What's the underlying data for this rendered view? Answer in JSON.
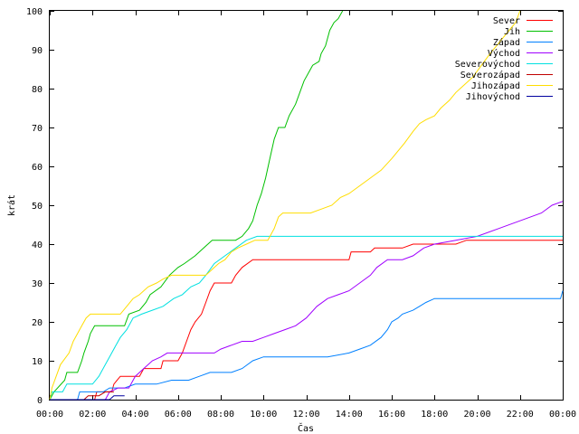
{
  "chart_data": {
    "type": "line",
    "title": "",
    "xlabel": "Čas",
    "ylabel": "krát",
    "xlim": [
      0,
      24
    ],
    "ylim": [
      0,
      100
    ],
    "grid": false,
    "legend_position": "top-right",
    "x_tick_labels": [
      "00:00",
      "02:00",
      "04:00",
      "06:00",
      "08:00",
      "10:00",
      "12:00",
      "14:00",
      "16:00",
      "18:00",
      "20:00",
      "22:00",
      "00:00"
    ],
    "y_tick_labels": [
      "0",
      "10",
      "20",
      "30",
      "40",
      "50",
      "60",
      "70",
      "80",
      "90",
      "100"
    ],
    "x_ticks": [
      0,
      2,
      4,
      6,
      8,
      10,
      12,
      14,
      16,
      18,
      20,
      22,
      24
    ],
    "y_ticks": [
      0,
      10,
      20,
      30,
      40,
      50,
      60,
      70,
      80,
      90,
      100
    ],
    "series": [
      {
        "name": "Sever",
        "color": "#ff0000",
        "points": [
          [
            0,
            0
          ],
          [
            2.1,
            0
          ],
          [
            2.2,
            2
          ],
          [
            2.9,
            2
          ],
          [
            3,
            4
          ],
          [
            3.3,
            6
          ],
          [
            4.2,
            6
          ],
          [
            4.4,
            8
          ],
          [
            5.2,
            8
          ],
          [
            5.3,
            10
          ],
          [
            6,
            10
          ],
          [
            6.2,
            12
          ],
          [
            6.4,
            15
          ],
          [
            6.6,
            18
          ],
          [
            6.8,
            20
          ],
          [
            7.1,
            22
          ],
          [
            7.3,
            25
          ],
          [
            7.5,
            28
          ],
          [
            7.7,
            30
          ],
          [
            8.5,
            30
          ],
          [
            8.7,
            32
          ],
          [
            9,
            34
          ],
          [
            9.5,
            36
          ],
          [
            10,
            36
          ],
          [
            12,
            36
          ],
          [
            14,
            36
          ],
          [
            14.1,
            38
          ],
          [
            15,
            38
          ],
          [
            15.2,
            39
          ],
          [
            16.5,
            39
          ],
          [
            17,
            40
          ],
          [
            17.5,
            40
          ],
          [
            18,
            40
          ],
          [
            19,
            40
          ],
          [
            19.5,
            41
          ],
          [
            24,
            41
          ]
        ]
      },
      {
        "name": "Jih",
        "color": "#00c000",
        "points": [
          [
            0,
            0
          ],
          [
            0.2,
            2
          ],
          [
            0.7,
            5
          ],
          [
            0.8,
            7
          ],
          [
            1.3,
            7
          ],
          [
            1.5,
            10
          ],
          [
            1.6,
            12
          ],
          [
            1.8,
            15
          ],
          [
            1.9,
            17
          ],
          [
            2.1,
            19
          ],
          [
            3.5,
            19
          ],
          [
            3.7,
            22
          ],
          [
            4.2,
            23
          ],
          [
            4.5,
            25
          ],
          [
            4.7,
            27
          ],
          [
            5.2,
            29
          ],
          [
            5.6,
            32
          ],
          [
            6,
            34
          ],
          [
            6.3,
            35
          ],
          [
            6.8,
            37
          ],
          [
            7.2,
            39
          ],
          [
            7.6,
            41
          ],
          [
            8,
            41
          ],
          [
            8.7,
            41
          ],
          [
            9,
            42
          ],
          [
            9.3,
            44
          ],
          [
            9.5,
            46
          ],
          [
            9.7,
            50
          ],
          [
            9.9,
            53
          ],
          [
            10.1,
            57
          ],
          [
            10.3,
            62
          ],
          [
            10.5,
            67
          ],
          [
            10.7,
            70
          ],
          [
            11,
            70
          ],
          [
            11.2,
            73
          ],
          [
            11.5,
            76
          ],
          [
            11.7,
            79
          ],
          [
            11.9,
            82
          ],
          [
            12.1,
            84
          ],
          [
            12.3,
            86
          ],
          [
            12.6,
            87
          ],
          [
            12.7,
            89
          ],
          [
            12.9,
            91
          ],
          [
            13.1,
            95
          ],
          [
            13.3,
            97
          ],
          [
            13.5,
            98
          ],
          [
            13.7,
            100
          ]
        ]
      },
      {
        "name": "Západ",
        "color": "#0080ff",
        "points": [
          [
            0,
            0
          ],
          [
            1.3,
            0
          ],
          [
            1.4,
            2
          ],
          [
            2.5,
            2
          ],
          [
            2.8,
            3
          ],
          [
            3.5,
            3
          ],
          [
            4,
            4
          ],
          [
            5,
            4
          ],
          [
            5.7,
            5
          ],
          [
            6.5,
            5
          ],
          [
            7,
            6
          ],
          [
            7.5,
            7
          ],
          [
            8.5,
            7
          ],
          [
            9,
            8
          ],
          [
            9.5,
            10
          ],
          [
            10,
            11
          ],
          [
            13,
            11
          ],
          [
            14,
            12
          ],
          [
            14.5,
            13
          ],
          [
            15,
            14
          ],
          [
            15.5,
            16
          ],
          [
            15.8,
            18
          ],
          [
            16,
            20
          ],
          [
            16.3,
            21
          ],
          [
            16.5,
            22
          ],
          [
            17,
            23
          ],
          [
            17.3,
            24
          ],
          [
            17.6,
            25
          ],
          [
            18,
            26
          ],
          [
            21,
            26
          ],
          [
            23.9,
            26
          ],
          [
            24,
            28
          ]
        ]
      },
      {
        "name": "Východ",
        "color": "#a000ff",
        "points": [
          [
            0,
            0
          ],
          [
            2.6,
            0
          ],
          [
            2.8,
            2
          ],
          [
            3.2,
            3
          ],
          [
            3.7,
            3
          ],
          [
            4,
            6
          ],
          [
            4.4,
            8
          ],
          [
            4.8,
            10
          ],
          [
            5.2,
            11
          ],
          [
            5.5,
            12
          ],
          [
            7.7,
            12
          ],
          [
            8,
            13
          ],
          [
            8.5,
            14
          ],
          [
            9,
            15
          ],
          [
            9.5,
            15
          ],
          [
            10,
            16
          ],
          [
            10.5,
            17
          ],
          [
            11,
            18
          ],
          [
            11.5,
            19
          ],
          [
            12,
            21
          ],
          [
            12.5,
            24
          ],
          [
            13,
            26
          ],
          [
            13.5,
            27
          ],
          [
            14,
            28
          ],
          [
            14.5,
            30
          ],
          [
            15,
            32
          ],
          [
            15.3,
            34
          ],
          [
            15.8,
            36
          ],
          [
            16.5,
            36
          ],
          [
            17,
            37
          ],
          [
            17.5,
            39
          ],
          [
            18,
            40
          ],
          [
            19,
            41
          ],
          [
            20,
            42
          ],
          [
            21,
            44
          ],
          [
            22,
            46
          ],
          [
            23,
            48
          ],
          [
            23.5,
            50
          ],
          [
            24,
            51
          ]
        ]
      },
      {
        "name": "Severovýchod",
        "color": "#00e0e0",
        "points": [
          [
            0,
            0
          ],
          [
            0.1,
            2
          ],
          [
            0.6,
            2
          ],
          [
            0.8,
            4
          ],
          [
            2,
            4
          ],
          [
            2.3,
            6
          ],
          [
            2.6,
            9
          ],
          [
            2.9,
            12
          ],
          [
            3.1,
            14
          ],
          [
            3.3,
            16
          ],
          [
            3.6,
            18
          ],
          [
            3.9,
            21
          ],
          [
            4.3,
            22
          ],
          [
            4.8,
            23
          ],
          [
            5.3,
            24
          ],
          [
            5.8,
            26
          ],
          [
            6.2,
            27
          ],
          [
            6.6,
            29
          ],
          [
            7,
            30
          ],
          [
            7.3,
            32
          ],
          [
            7.7,
            35
          ],
          [
            8.2,
            37
          ],
          [
            8.7,
            39
          ],
          [
            9.2,
            41
          ],
          [
            9.7,
            42
          ],
          [
            11,
            42
          ],
          [
            13,
            42
          ],
          [
            17,
            42
          ],
          [
            24,
            42
          ]
        ]
      },
      {
        "name": "Severozápad",
        "color": "#c00000",
        "points": [
          [
            0,
            0
          ],
          [
            1.6,
            0
          ],
          [
            1.8,
            1
          ],
          [
            2.3,
            1
          ],
          [
            2.6,
            2
          ],
          [
            3,
            2
          ]
        ]
      },
      {
        "name": "Jihozápad",
        "color": "#ffdd00",
        "points": [
          [
            0,
            0
          ],
          [
            0.1,
            3
          ],
          [
            0.3,
            6
          ],
          [
            0.5,
            9
          ],
          [
            0.9,
            12
          ],
          [
            1.1,
            15
          ],
          [
            1.3,
            17
          ],
          [
            1.5,
            19
          ],
          [
            1.7,
            21
          ],
          [
            1.9,
            22
          ],
          [
            3.3,
            22
          ],
          [
            3.6,
            24
          ],
          [
            3.9,
            26
          ],
          [
            4.2,
            27
          ],
          [
            4.6,
            29
          ],
          [
            5,
            30
          ],
          [
            5.3,
            31
          ],
          [
            5.7,
            32
          ],
          [
            7.3,
            32
          ],
          [
            7.7,
            34
          ],
          [
            7.9,
            35
          ],
          [
            8.2,
            36
          ],
          [
            8.5,
            38
          ],
          [
            8.8,
            39
          ],
          [
            9.2,
            40
          ],
          [
            9.6,
            41
          ],
          [
            10.2,
            41
          ],
          [
            10.5,
            44
          ],
          [
            10.7,
            47
          ],
          [
            10.9,
            48
          ],
          [
            12.2,
            48
          ],
          [
            12.7,
            49
          ],
          [
            13.2,
            50
          ],
          [
            13.6,
            52
          ],
          [
            14,
            53
          ],
          [
            14.5,
            55
          ],
          [
            15,
            57
          ],
          [
            15.5,
            59
          ],
          [
            16,
            62
          ],
          [
            16.3,
            64
          ],
          [
            16.6,
            66
          ],
          [
            17,
            69
          ],
          [
            17.3,
            71
          ],
          [
            17.6,
            72
          ],
          [
            18,
            73
          ],
          [
            18.3,
            75
          ],
          [
            18.7,
            77
          ],
          [
            19,
            79
          ],
          [
            19.4,
            81
          ],
          [
            19.8,
            83
          ],
          [
            20.2,
            86
          ],
          [
            20.6,
            89
          ],
          [
            20.9,
            91
          ],
          [
            21.2,
            93
          ],
          [
            21.5,
            95
          ],
          [
            21.8,
            97
          ],
          [
            22,
            100
          ]
        ]
      },
      {
        "name": "Jihovýchod",
        "color": "#0000a0",
        "points": [
          [
            0,
            0
          ],
          [
            2.8,
            0
          ],
          [
            3,
            1
          ],
          [
            3.5,
            1
          ]
        ]
      }
    ]
  }
}
